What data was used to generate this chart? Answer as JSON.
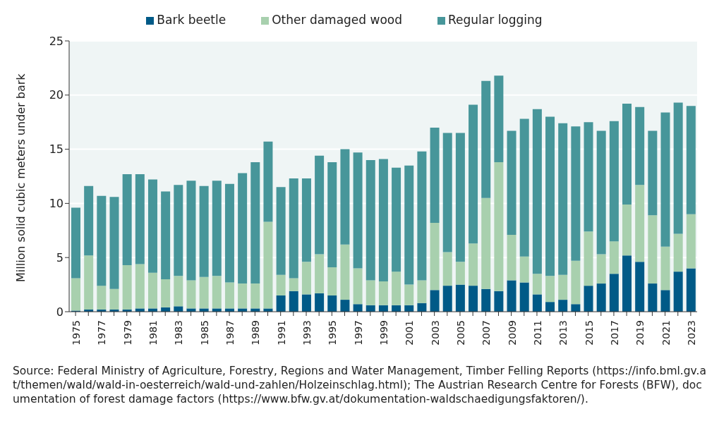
{
  "chart_data": {
    "type": "bar",
    "stacked": true,
    "ylabel": "Million solid cubic meters under bark",
    "categories": [
      "1975",
      null,
      "1977",
      null,
      "1979",
      null,
      "1981",
      null,
      "1983",
      null,
      "1985",
      null,
      "1987",
      null,
      "1989",
      null,
      "1991",
      null,
      "1993",
      null,
      "1995",
      null,
      "1997",
      null,
      "1999",
      null,
      "2001",
      null,
      "2003",
      null,
      "2005",
      null,
      "2007",
      null,
      "2009",
      null,
      "2011",
      null,
      "2013",
      null,
      "2015",
      null,
      "2017",
      null,
      "2019",
      null,
      "2021",
      null,
      "2023"
    ],
    "series": [
      {
        "name": "Bark beetle",
        "color": "#005a87",
        "values": [
          0.1,
          0.2,
          0.2,
          0.2,
          0.2,
          0.3,
          0.3,
          0.4,
          0.5,
          0.3,
          0.3,
          0.3,
          0.3,
          0.3,
          0.3,
          0.3,
          1.5,
          1.9,
          1.6,
          1.7,
          1.5,
          1.1,
          0.7,
          0.6,
          0.6,
          0.6,
          0.6,
          0.8,
          2.0,
          2.4,
          2.5,
          2.4,
          2.1,
          1.9,
          2.9,
          2.7,
          1.6,
          0.9,
          1.1,
          0.7,
          2.4,
          2.6,
          3.5,
          5.2,
          4.6,
          2.6,
          2.0,
          3.7,
          4.0
        ]
      },
      {
        "name": "Other damaged wood",
        "color": "#a8d0ae",
        "values": [
          3.0,
          5.0,
          2.2,
          1.9,
          4.1,
          4.1,
          3.3,
          2.6,
          2.8,
          2.6,
          2.9,
          3.0,
          2.4,
          2.3,
          2.3,
          8.0,
          1.9,
          1.2,
          3.0,
          3.6,
          2.6,
          5.1,
          3.3,
          2.3,
          2.2,
          3.1,
          1.9,
          2.1,
          6.2,
          3.1,
          2.1,
          3.9,
          8.4,
          11.9,
          4.2,
          2.4,
          1.9,
          2.4,
          2.3,
          4.0,
          5.0,
          2.7,
          3.0,
          4.7,
          7.1,
          6.3,
          4.0,
          3.5,
          5.0
        ]
      },
      {
        "name": "Regular logging",
        "color": "#47969a",
        "values": [
          6.5,
          6.4,
          8.3,
          8.5,
          8.4,
          8.3,
          8.6,
          8.1,
          8.4,
          9.2,
          8.4,
          8.8,
          9.1,
          10.2,
          11.2,
          7.4,
          8.1,
          9.2,
          7.7,
          9.1,
          9.7,
          8.8,
          10.7,
          11.1,
          11.3,
          9.6,
          11.0,
          11.9,
          8.8,
          11.0,
          11.9,
          12.8,
          10.8,
          8.0,
          9.6,
          12.7,
          15.2,
          14.7,
          14.0,
          12.4,
          10.1,
          11.4,
          11.1,
          9.3,
          7.2,
          7.8,
          12.4,
          12.1,
          10.0
        ]
      }
    ],
    "ylim": [
      0,
      25
    ],
    "yticks": [
      0,
      5,
      10,
      15,
      20,
      25
    ],
    "grid": "y",
    "legend": "top",
    "annotations": [
      "Source: Federal Ministry of Agriculture, Forestry, Regions and Water Management, Timber Felling Reports (https://info.bml.gv.at/themen/wald/wald-in-oesterreich/wald-und-zahlen/Holzeinschlag.html); The Austrian Research Centre for Forests (BFW), documentation of forest damage factors (https://www.bfw.gv.at/dokumentation-waldschaedigungsfaktoren/)."
    ]
  }
}
